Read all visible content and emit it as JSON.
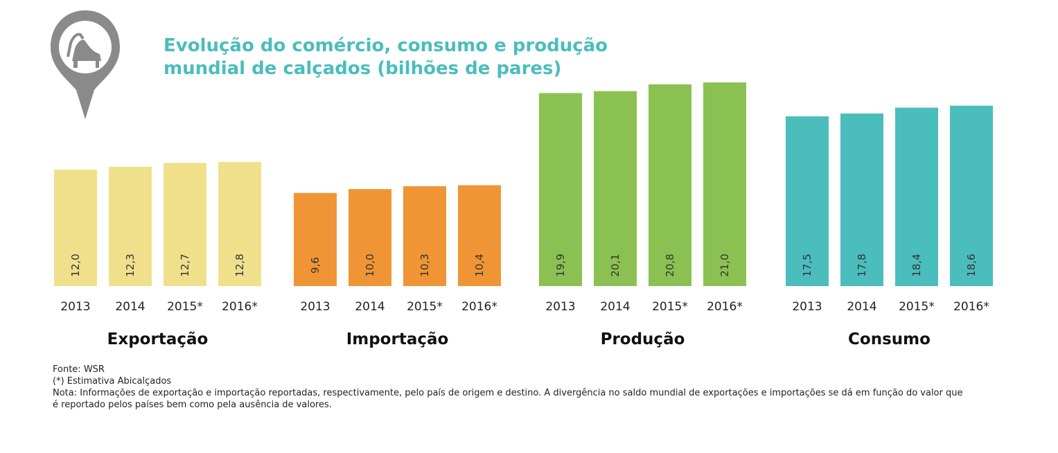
{
  "title": "Evolução do comércio, consumo e produção\nmundial de calçados (bilhões de pares)",
  "icon": "shoe-pin-icon",
  "footnotes": {
    "source": "Fonte: WSR",
    "estimate": "(*) Estimativa Abicalçados",
    "note": "Nota: Informações de exportação e importação reportadas, respectivamente, pelo país de origem e destino. A divergência no saldo mundial de exportações e importações se dá em função do valor que é reportado pelos países bem como pela ausência de valores."
  },
  "chart_data": {
    "type": "bar",
    "categories": [
      "2013",
      "2014",
      "2015*",
      "2016*"
    ],
    "series": [
      {
        "name": "Exportação",
        "values": [
          12.0,
          12.3,
          12.7,
          12.8
        ],
        "labels": [
          "12,0",
          "12,3",
          "12,7",
          "12,8"
        ],
        "color": "#f0e08c"
      },
      {
        "name": "Importação",
        "values": [
          9.6,
          10.0,
          10.3,
          10.4
        ],
        "labels": [
          "9,6",
          "10,0",
          "10,3",
          "10,4"
        ],
        "color": "#f09535"
      },
      {
        "name": "Produção",
        "values": [
          19.9,
          20.1,
          20.8,
          21.0
        ],
        "labels": [
          "19,9",
          "20,1",
          "20,8",
          "21,0"
        ],
        "color": "#8bc152"
      },
      {
        "name": "Consumo",
        "values": [
          17.5,
          17.8,
          18.4,
          18.6
        ],
        "labels": [
          "17,5",
          "17,8",
          "18,4",
          "18,6"
        ],
        "color": "#4bbdbd"
      }
    ],
    "value_unit": "bilhões de pares"
  }
}
